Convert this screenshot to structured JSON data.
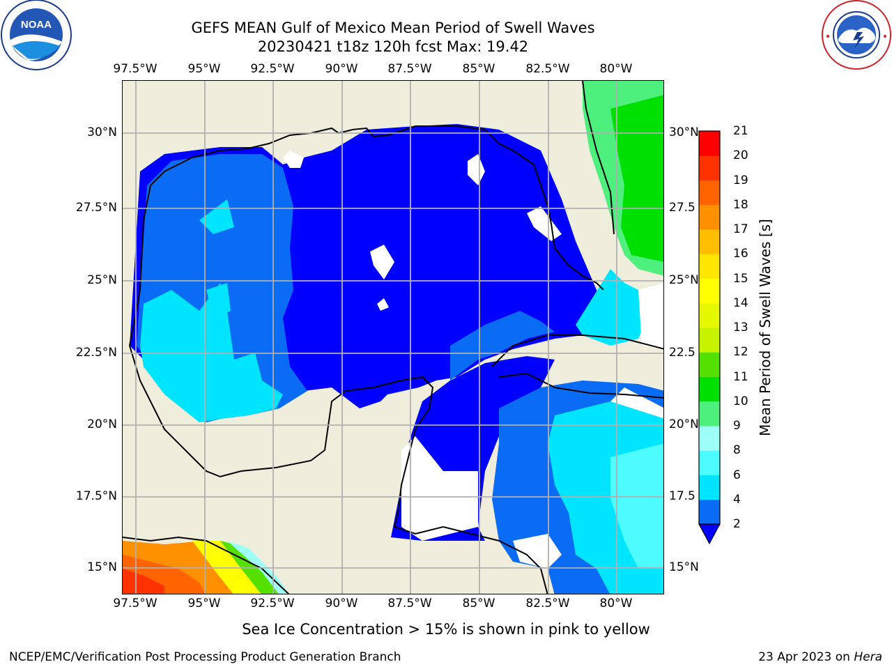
{
  "header": {
    "title_line1": "GEFS MEAN Gulf of Mexico Mean Period of Swell Waves",
    "title_line2": "20230421 t18z 120h fcst   Max: 19.42"
  },
  "logos": {
    "left": {
      "name": "noaa-logo",
      "text": "NOAA",
      "ring_text": "NATIONAL OCEANIC AND ATMOSPHERIC ADMINISTRATION · U.S. DEPARTMENT OF COMMERCE"
    },
    "right": {
      "name": "nws-logo",
      "ring_text": "NATIONAL WEATHER SERVICE"
    }
  },
  "map": {
    "longitude_labels": [
      "97.5°W",
      "95°W",
      "92.5°W",
      "90°W",
      "87.5°W",
      "85°W",
      "82.5°W",
      "80°W"
    ],
    "latitude_labels_left": [
      "30°N",
      "27.5°N",
      "25°N",
      "22.5°N",
      "20°N",
      "17.5°N",
      "15°N"
    ],
    "latitude_labels_right": [
      "30°N",
      "27.5",
      "25°N",
      "22.5",
      "20°N",
      "17.5",
      "15°N"
    ],
    "gridlines": true,
    "land_color": "#efeedc",
    "coastline_color": "#000000"
  },
  "colorbar": {
    "label": "Mean Period of Swell Waves [s]",
    "ticks": [
      "2",
      "4",
      "6",
      "8",
      "9",
      "10",
      "11",
      "12",
      "13",
      "14",
      "15",
      "16",
      "17",
      "18",
      "19",
      "20",
      "21"
    ],
    "extend": "min",
    "colors": [
      "#0a6cf5",
      "#00e5ff",
      "#4dfcff",
      "#9dfff5",
      "#4df07d",
      "#00e000",
      "#55e000",
      "#c6f400",
      "#e5f800",
      "#ffff00",
      "#ffe600",
      "#ffbe00",
      "#ff9000",
      "#ff6400",
      "#ff3200",
      "#ff0000"
    ],
    "under_color": "#0000ff"
  },
  "footer": {
    "note": "Sea Ice Concentration > 15% is shown in pink to yellow",
    "credit": "NCEP/EMC/Verification Post Processing Product Generation Branch",
    "date": "23 Apr 2023 on",
    "machine": "Hera"
  }
}
